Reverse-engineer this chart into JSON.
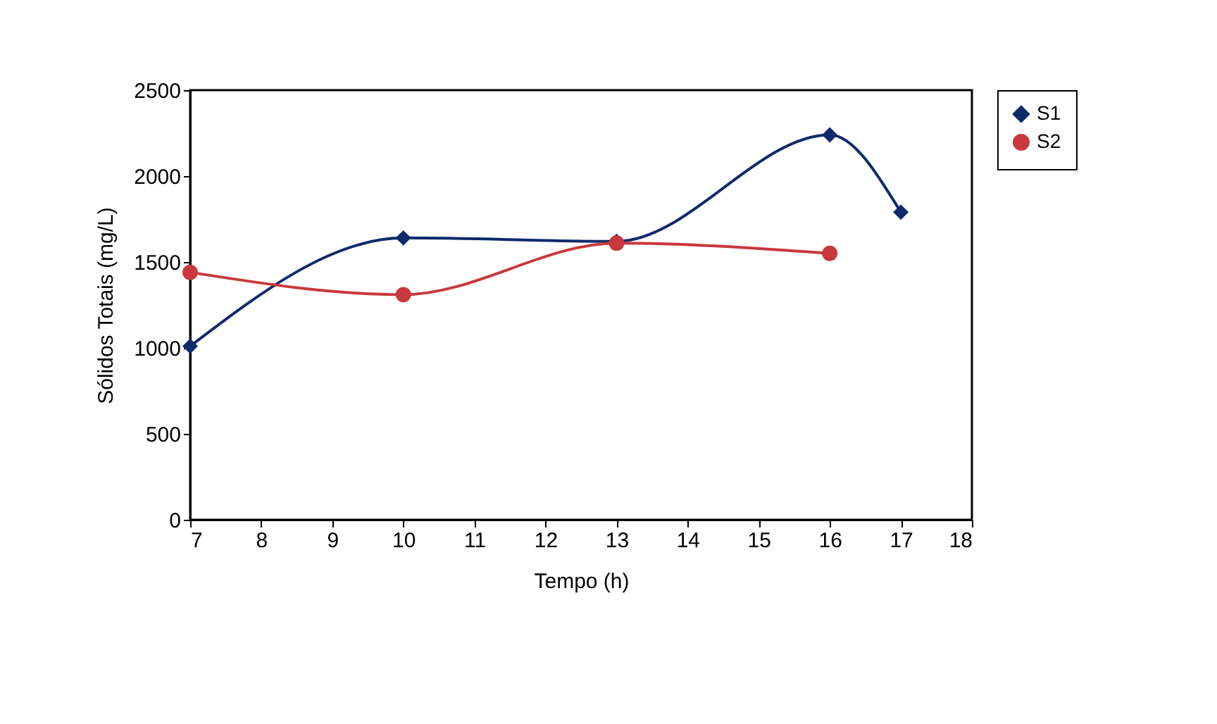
{
  "chart_data": {
    "type": "line",
    "xlabel": "Tempo (h)",
    "ylabel": "Sólidos Totais (mg/L)",
    "xlim": [
      7,
      18
    ],
    "xticks": [
      7,
      8,
      9,
      10,
      11,
      12,
      13,
      14,
      15,
      16,
      17,
      18
    ],
    "ylim": [
      0,
      2500
    ],
    "yticks": [
      0,
      500,
      1000,
      1500,
      2000,
      2500
    ],
    "legend": "right",
    "grid": false,
    "series": [
      {
        "name": "S1",
        "color": "#0d2a6b",
        "marker": "diamond",
        "x": [
          7,
          10,
          13,
          16,
          17
        ],
        "values": [
          1010,
          1640,
          1620,
          2240,
          1790
        ]
      },
      {
        "name": "S2",
        "color": "#c8383c",
        "marker": "circle",
        "x": [
          7,
          10,
          13,
          16
        ],
        "values": [
          1440,
          1310,
          1610,
          1550
        ]
      }
    ]
  }
}
